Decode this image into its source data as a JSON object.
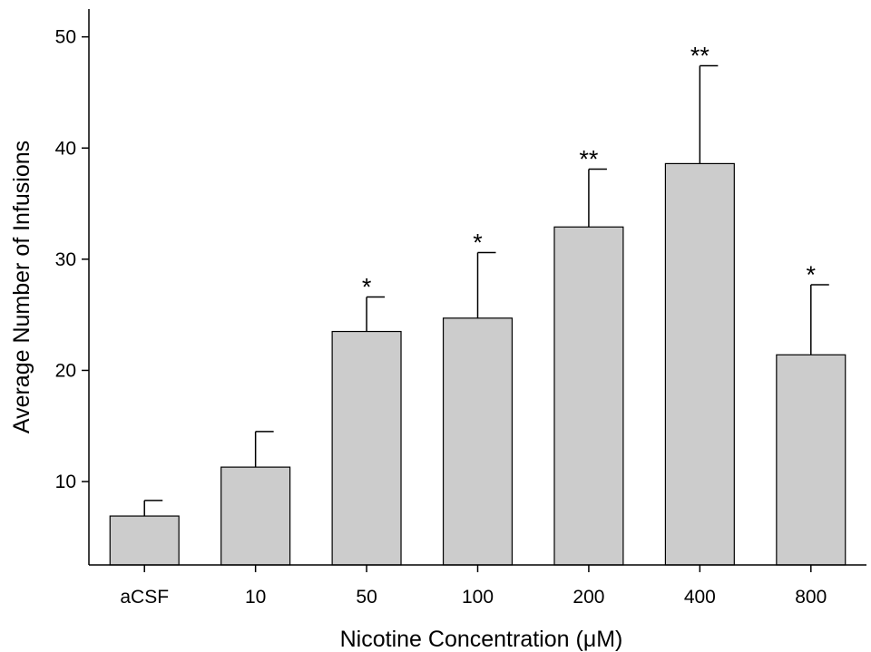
{
  "chart_data": {
    "type": "bar",
    "title": "",
    "xlabel": "Nicotine Concentration (μM)",
    "ylabel": "Average Number of Infusions",
    "categories": [
      "aCSF",
      "10",
      "50",
      "100",
      "200",
      "400",
      "800"
    ],
    "values": [
      6.9,
      11.3,
      23.5,
      24.7,
      32.9,
      38.6,
      21.4
    ],
    "error_upper": [
      8.3,
      14.5,
      26.6,
      30.6,
      38.1,
      47.4,
      27.7
    ],
    "significance": [
      "",
      "",
      "*",
      "*",
      "**",
      "**",
      "*"
    ],
    "ylim": [
      2.5,
      52.5
    ],
    "yticks": [
      10,
      20,
      30,
      40,
      50
    ],
    "grid": false,
    "bar_color": "#cccccc",
    "bar_edge_color": "#000000"
  }
}
